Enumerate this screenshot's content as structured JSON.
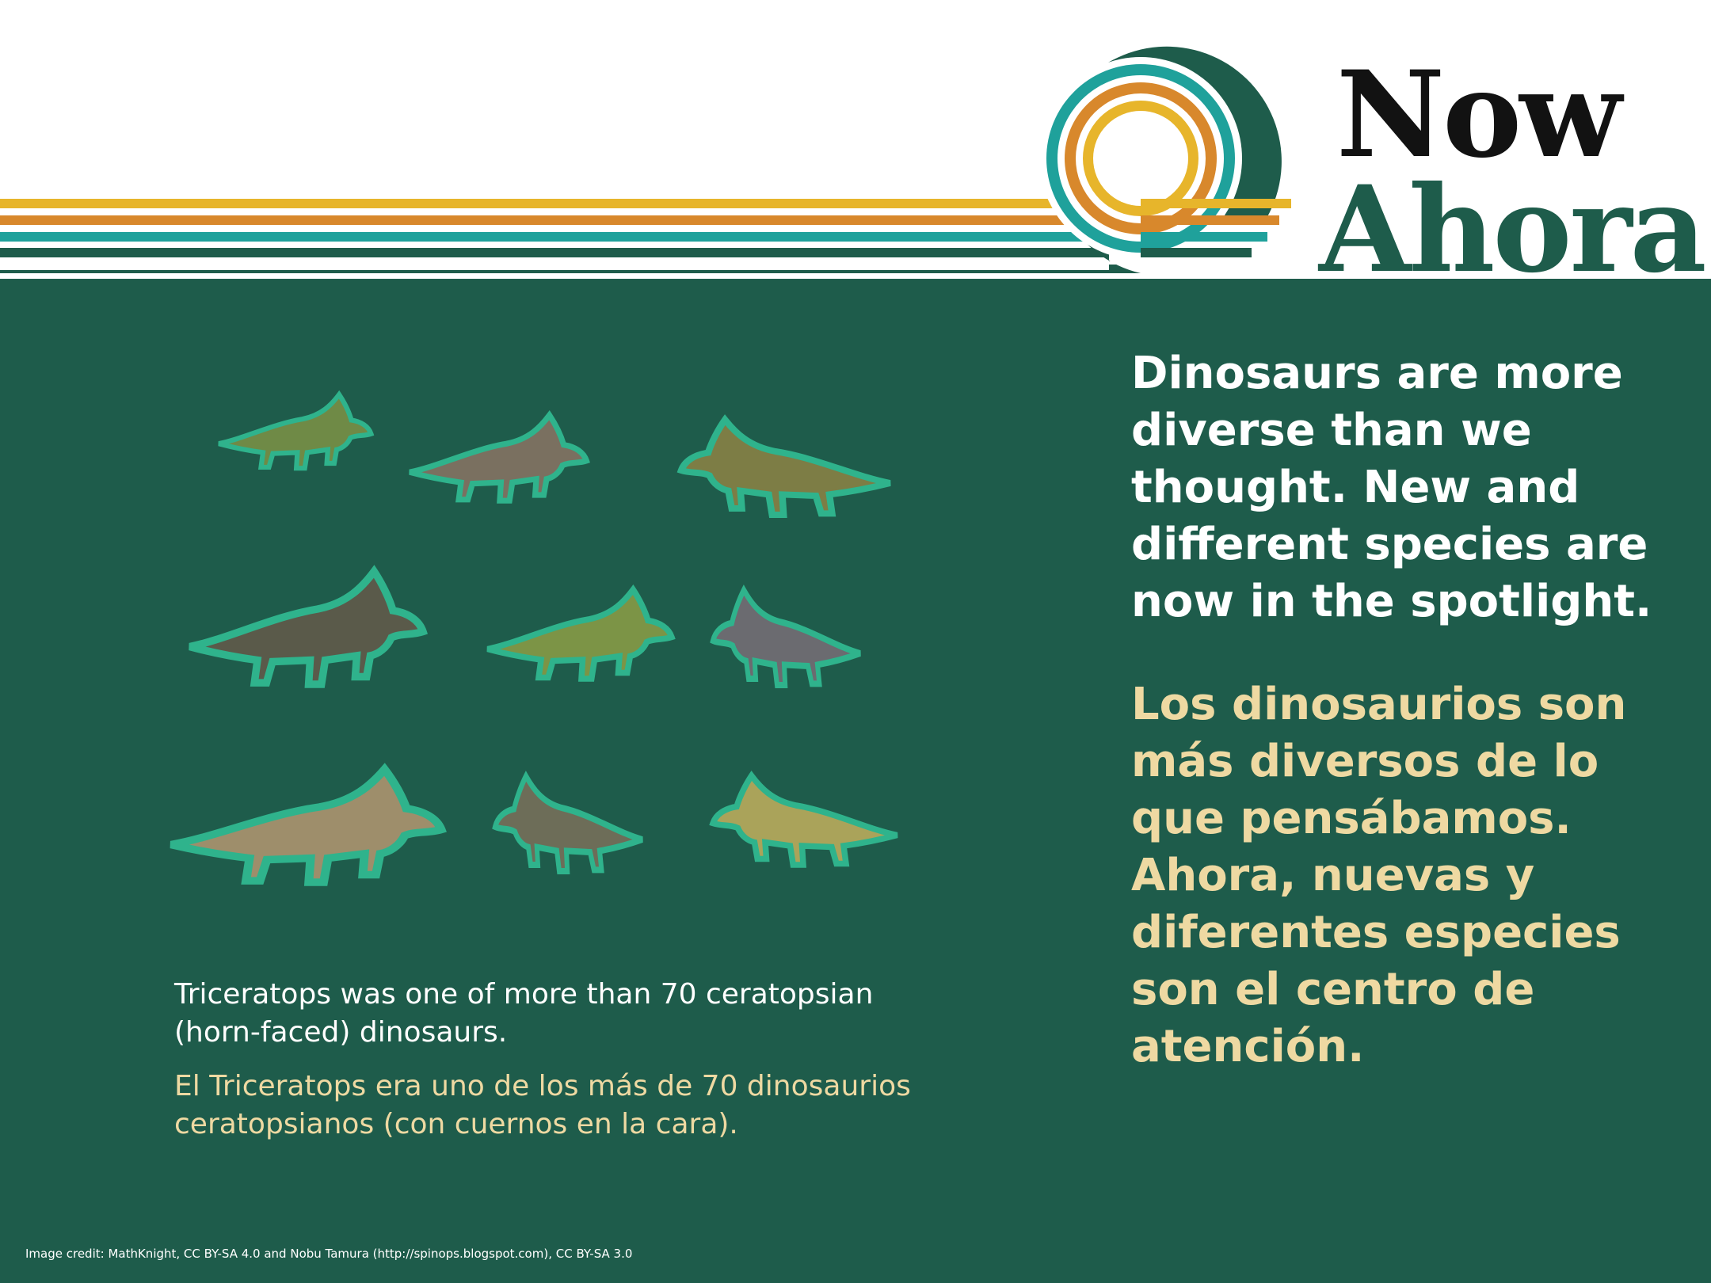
{
  "header": {
    "title_en": "Now",
    "title_es": "Ahora"
  },
  "colors": {
    "green_dark": "#1e5c4b",
    "teal": "#1fa19b",
    "orange": "#d8882c",
    "yellow": "#e7b52b",
    "cream": "#eed9a2",
    "dino_outline": "#2fb38c"
  },
  "illustration": {
    "subject": "nine ceratopsian dinosaurs"
  },
  "caption": {
    "en": "Triceratops was one of more than 70 ceratopsian (horn-faced) dinosaurs.",
    "es": "El Triceratops era uno de los más de 70 dinosaurios ceratopsianos (con cuernos en la cara)."
  },
  "statement": {
    "en": "Dinosaurs are more diverse than we thought. New and different species are now in the spotlight.",
    "es": "Los dinosaurios son más diversos de lo que pensábamos. Ahora, nuevas y diferentes especies son el centro de atención."
  },
  "credit": "Image credit: MathKnight, CC BY-SA 4.0 and Nobu Tamura (http://spinops.blogspot.com), CC BY-SA 3.0"
}
